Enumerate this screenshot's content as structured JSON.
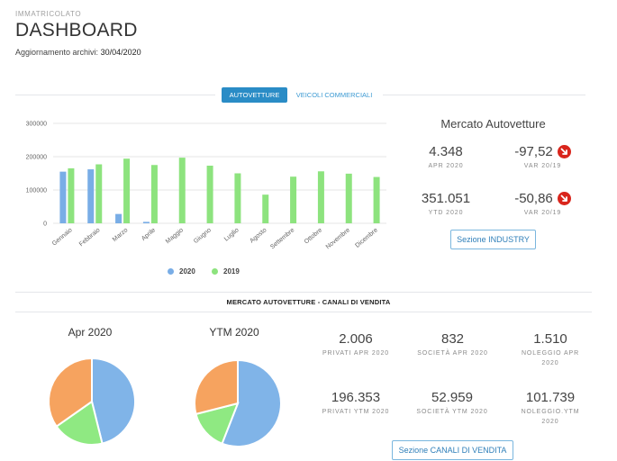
{
  "header": {
    "subtitle": "IMMATRICOLATO",
    "title": "DASHBOARD",
    "updated_label": "Aggiornamento archivi:",
    "updated_date": "30/04/2020"
  },
  "tabs": [
    {
      "label": "AUTOVETTURE",
      "active": true
    },
    {
      "label": "VEICOLI COMMERCIALI",
      "active": false
    }
  ],
  "chart_data": [
    {
      "type": "bar",
      "categories": [
        "Gennaio",
        "Febbraio",
        "Marzo",
        "Aprile",
        "Maggio",
        "Giugno",
        "Luglio",
        "Agosto",
        "Settembre",
        "Ottobre",
        "Novembre",
        "Dicembre"
      ],
      "series": [
        {
          "name": "2020",
          "color": "#79ade6",
          "values": [
            155000,
            162000,
            28000,
            4348,
            null,
            null,
            null,
            null,
            null,
            null,
            null,
            null
          ]
        },
        {
          "name": "2019",
          "color": "#8de37e",
          "values": [
            165000,
            177000,
            194000,
            175000,
            197000,
            173000,
            150000,
            86000,
            140000,
            156000,
            149000,
            139000
          ]
        }
      ],
      "yticks": [
        "0",
        "100000",
        "200000",
        "300000"
      ],
      "ylim": [
        0,
        300000
      ],
      "grid": true,
      "legend": "bottom"
    },
    {
      "type": "pie",
      "title": "Apr 2020",
      "labels": [
        "PRIVATI APR 2020",
        "SOCIETÀ APR 2020",
        "NOLEGGIO APR 2020"
      ],
      "values": [
        2006,
        832,
        1510
      ],
      "colors": [
        "#80b4e8",
        "#8fe982",
        "#f6a35f"
      ]
    },
    {
      "type": "pie",
      "title": "YTM 2020",
      "labels": [
        "PRIVATI YTM 2020",
        "SOCIETÀ YTM 2020",
        "NOLEGGIO.YTM 2020"
      ],
      "values": [
        196353,
        52959,
        101739
      ],
      "colors": [
        "#80b4e8",
        "#8fe982",
        "#f6a35f"
      ]
    }
  ],
  "legend": [
    {
      "label": "2020",
      "color": "#79ade6"
    },
    {
      "label": "2019",
      "color": "#8de37e"
    }
  ],
  "mercato": {
    "title": "Mercato Autovetture",
    "stats": [
      {
        "value": "4.348",
        "label": "APR 2020"
      },
      {
        "value": "-97,52",
        "label": "VAR 20/19",
        "icon": "down-arrow-icon"
      },
      {
        "value": "351.051",
        "label": "YTD 2020"
      },
      {
        "value": "-50,86",
        "label": "VAR 20/19",
        "icon": "down-arrow-icon"
      }
    ],
    "button": "Sezione INDUSTRY"
  },
  "canali": {
    "title": "MERCATO AUTOVETTURE - CANALI DI VENDITA",
    "pie_apr_title": "Apr 2020",
    "pie_ytm_title": "YTM 2020",
    "stats": [
      {
        "value": "2.006",
        "label": "PRIVATI APR 2020"
      },
      {
        "value": "832",
        "label": "SOCIETÀ APR 2020"
      },
      {
        "value": "1.510",
        "label": "NOLEGGIO APR 2020"
      },
      {
        "value": "196.353",
        "label": "PRIVATI YTM 2020"
      },
      {
        "value": "52.959",
        "label": "SOCIETÀ YTM 2020"
      },
      {
        "value": "101.739",
        "label": "NOLEGGIO.YTM 2020"
      }
    ],
    "button": "Sezione CANALI DI VENDITA"
  },
  "colors": {
    "accent": "#2a8cc6",
    "down": "#d9251c"
  }
}
